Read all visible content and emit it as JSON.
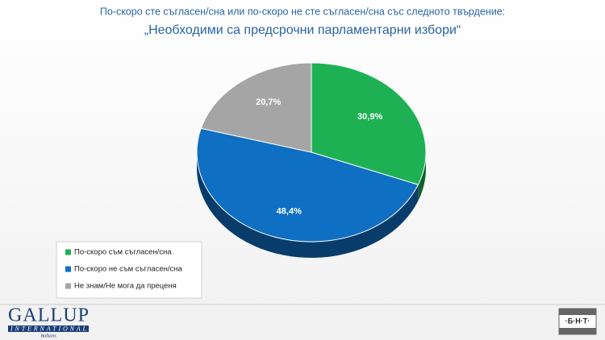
{
  "chart_data": {
    "type": "pie",
    "title": "По-скоро сте съгласен/сна или по-скоро не сте съгласен/сна със следното твърдение:",
    "subtitle": "„Необходими са предсрочни парламентарни избори“",
    "categories": [
      "По-скоро съм съгласен/сна",
      "По-скоро не съм съгласен/сна",
      "Не знам/Не мога да преценя"
    ],
    "values": [
      30.9,
      48.4,
      20.7
    ],
    "value_labels": [
      "30,9%",
      "48,4%",
      "20,7%"
    ],
    "colors": [
      "#1eb153",
      "#0f6fc2",
      "#a5a5a5"
    ],
    "legend": "bottom-left"
  },
  "footer": {
    "left_logo": {
      "name": "GALLUP",
      "line2": "INTERNATIONAL",
      "line3": "Balkans"
    },
    "right_logo": "·Б·Н·Т·"
  }
}
